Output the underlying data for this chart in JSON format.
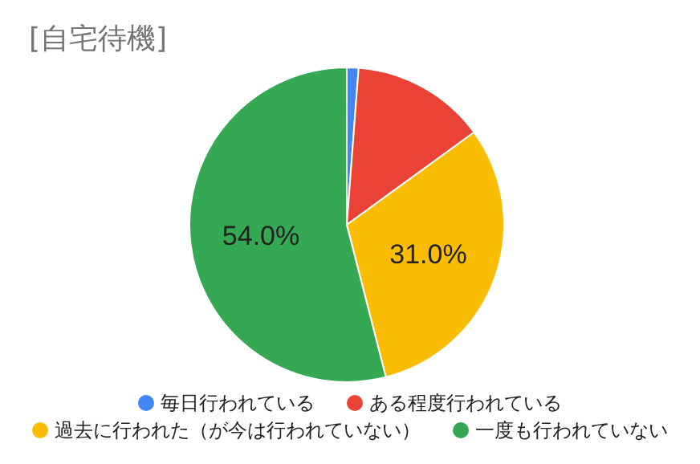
{
  "chart_data": {
    "type": "pie",
    "title": "[自宅待機]",
    "categories": [
      "毎日行われている",
      "ある程度行われている",
      "過去に行われた（が今は行われていない）",
      "一度も行われていない"
    ],
    "values": [
      1.2,
      13.8,
      31.0,
      54.0
    ],
    "colors": [
      "#4285f4",
      "#ea4335",
      "#fbbc04",
      "#34a853"
    ],
    "value_labels": [
      null,
      null,
      "31.0%",
      "54.0%"
    ],
    "legend": "bottom"
  }
}
